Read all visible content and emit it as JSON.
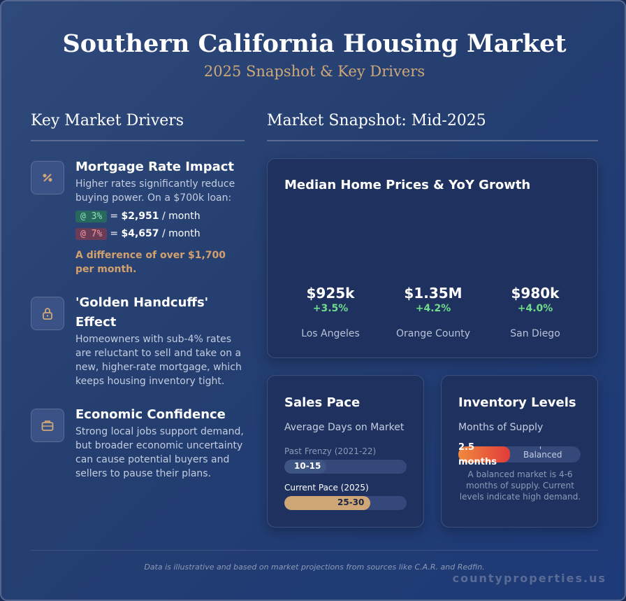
{
  "header": {
    "title": "Southern California Housing Market",
    "subtitle": "2025 Snapshot & Key Drivers"
  },
  "left": {
    "heading": "Key Market Drivers",
    "drivers": [
      {
        "icon": "percent-icon",
        "title": "Mortgage Rate Impact",
        "text": "Higher rates significantly reduce buying power. On a $700k loan:",
        "rates": [
          {
            "badge": "@ 3%",
            "eq": "= ",
            "amount": "$2,951",
            "unit": " / month"
          },
          {
            "badge": "@ 7%",
            "eq": "= ",
            "amount": "$4,657",
            "unit": " / month"
          }
        ],
        "note": "A difference of over $1,700 per month."
      },
      {
        "icon": "lock-icon",
        "title_line1": "'Golden Handcuffs'",
        "title_line2": "Effect",
        "text": "Homeowners with sub-4% rates are reluctant to sell and take on a new, higher-rate mortgage, which keeps housing inventory tight."
      },
      {
        "icon": "briefcase-icon",
        "title": "Economic Confidence",
        "text": "Strong local jobs support demand, but broader economic uncertainty can cause potential buyers and sellers to pause their plans."
      }
    ]
  },
  "right": {
    "heading": "Market Snapshot: Mid-2025",
    "prices_card": {
      "title": "Median Home Prices & YoY Growth",
      "regions": [
        {
          "price": "$925k",
          "growth": "+3.5%",
          "name": "Los Angeles"
        },
        {
          "price": "$1.35M",
          "growth": "+4.2%",
          "name": "Orange County"
        },
        {
          "price": "$980k",
          "growth": "+4.0%",
          "name": "San Diego"
        }
      ]
    },
    "sales_card": {
      "title": "Sales Pace",
      "subtitle": "Average Days on Market",
      "bars": [
        {
          "label": "Past Frenzy (2021-22)",
          "value": "10-15",
          "fraction": 0.34,
          "color": "#3e5583"
        },
        {
          "label": "Current Pace (2025)",
          "value": "25-30",
          "fraction": 0.7,
          "color": "#cfa777"
        }
      ]
    },
    "inventory_card": {
      "title": "Inventory Levels",
      "subtitle": "Months of Supply",
      "value": "2.5 months",
      "fraction": 0.42,
      "marker_label": "Balanced",
      "note": "A balanced market is 4-6 months of supply. Current levels indicate high demand."
    }
  },
  "footer": {
    "note": "Data is illustrative and based on market projections from sources like C.A.R. and Redfin.",
    "watermark": "countyproperties.us"
  },
  "colors": {
    "accent_gold": "#d0a877",
    "growth_green": "#6fdc8c",
    "inventory_gradient": [
      "#f08a3c",
      "#e23b3b"
    ]
  }
}
